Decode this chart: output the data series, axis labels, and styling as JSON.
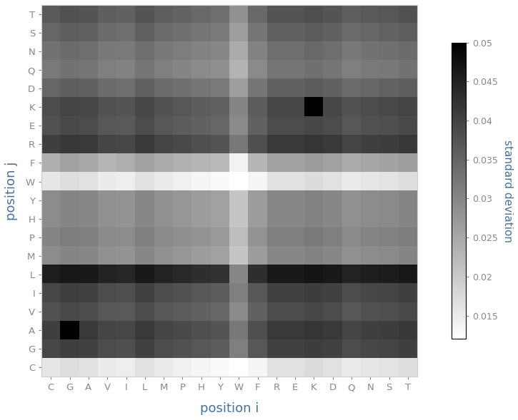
{
  "x_labels": [
    "C",
    "G",
    "A",
    "V",
    "I",
    "L",
    "M",
    "P",
    "H",
    "Y",
    "W",
    "F",
    "R",
    "E",
    "K",
    "D",
    "Q",
    "N",
    "S",
    "T"
  ],
  "y_labels": [
    "T",
    "S",
    "N",
    "Q",
    "D",
    "K",
    "E",
    "R",
    "F",
    "W",
    "Y",
    "H",
    "P",
    "M",
    "L",
    "I",
    "V",
    "A",
    "G",
    "C"
  ],
  "vmin": 0.012,
  "vmax": 0.05,
  "xlabel": "position i",
  "ylabel": "position j",
  "colorbar_label": "standard deviation",
  "colorbar_ticks": [
    0.015,
    0.02,
    0.025,
    0.03,
    0.035,
    0.04,
    0.045,
    0.05
  ],
  "label_color": "#4a7199",
  "tick_color": "#4a7199",
  "figsize": [
    7.25,
    5.89
  ],
  "dpi": 100
}
